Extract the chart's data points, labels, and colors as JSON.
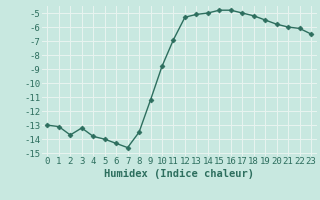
{
  "x": [
    0,
    1,
    2,
    3,
    4,
    5,
    6,
    7,
    8,
    9,
    10,
    11,
    12,
    13,
    14,
    15,
    16,
    17,
    18,
    19,
    20,
    21,
    22,
    23
  ],
  "y": [
    -13.0,
    -13.1,
    -13.7,
    -13.2,
    -13.8,
    -14.0,
    -14.3,
    -14.6,
    -13.5,
    -11.2,
    -8.8,
    -6.9,
    -5.3,
    -5.1,
    -5.0,
    -4.8,
    -4.8,
    -5.0,
    -5.2,
    -5.5,
    -5.8,
    -6.0,
    -6.1,
    -6.5
  ],
  "title": "",
  "xlabel": "Humidex (Indice chaleur)",
  "ylabel": "",
  "xlim": [
    -0.5,
    23.5
  ],
  "ylim": [
    -15.2,
    -4.5
  ],
  "yticks": [
    -15,
    -14,
    -13,
    -12,
    -11,
    -10,
    -9,
    -8,
    -7,
    -6,
    -5
  ],
  "xticks": [
    0,
    1,
    2,
    3,
    4,
    5,
    6,
    7,
    8,
    9,
    10,
    11,
    12,
    13,
    14,
    15,
    16,
    17,
    18,
    19,
    20,
    21,
    22,
    23
  ],
  "line_color": "#2d6e5e",
  "marker": "D",
  "marker_size": 2.5,
  "bg_color": "#c8e8e0",
  "grid_color": "#e8f4f0",
  "tick_label_fontsize": 6.5,
  "xlabel_fontsize": 7.5
}
